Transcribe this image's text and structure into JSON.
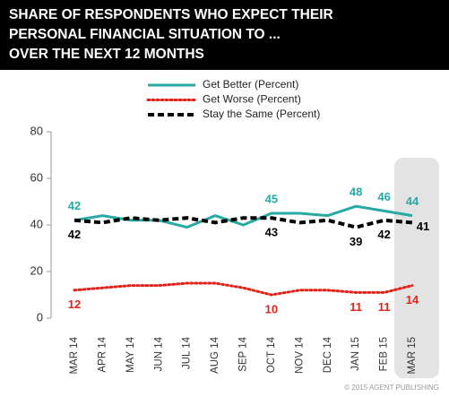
{
  "chart_data": {
    "type": "line",
    "title": [
      "SHARE OF RESPONDENTS WHO EXPECT THEIR",
      "PERSONAL FINANCIAL SITUATION TO ...",
      "OVER THE NEXT 12 MONTHS"
    ],
    "categories": [
      "MAR 14",
      "APR 14",
      "MAY 14",
      "JUN 14",
      "JUL 14",
      "AUG 14",
      "SEP 14",
      "OCT 14",
      "NOV 14",
      "DEC 14",
      "JAN 15",
      "FEB 15",
      "MAR 15"
    ],
    "series": [
      {
        "name": "Get Better (Percent)",
        "color": "#27a9a4",
        "style": "solid",
        "values": [
          42,
          44,
          42,
          42,
          39,
          44,
          40,
          45,
          45,
          44,
          48,
          46,
          44
        ],
        "value_labels": [
          "42",
          null,
          null,
          null,
          null,
          null,
          null,
          "45",
          null,
          null,
          "48",
          "46",
          "44"
        ]
      },
      {
        "name": "Get Worse (Percent)",
        "color": "#e2231a",
        "style": "dotted",
        "values": [
          12,
          13,
          14,
          14,
          15,
          15,
          13,
          10,
          12,
          12,
          11,
          11,
          14
        ],
        "value_labels": [
          "12",
          null,
          null,
          null,
          null,
          null,
          null,
          "10",
          null,
          null,
          "11",
          "11",
          "14"
        ]
      },
      {
        "name": "Stay the Same (Percent)",
        "color": "#000000",
        "style": "dashed",
        "values": [
          42,
          41,
          43,
          42,
          43,
          41,
          43,
          43,
          41,
          42,
          39,
          42,
          41
        ],
        "value_labels": [
          "42",
          null,
          null,
          null,
          null,
          null,
          null,
          "43",
          null,
          null,
          "39",
          "42",
          "41"
        ]
      }
    ],
    "ylim": [
      0,
      80
    ],
    "yticks": [
      0,
      20,
      40,
      60,
      80
    ],
    "footer": "© 2015 AGENT PUBLISHING"
  }
}
